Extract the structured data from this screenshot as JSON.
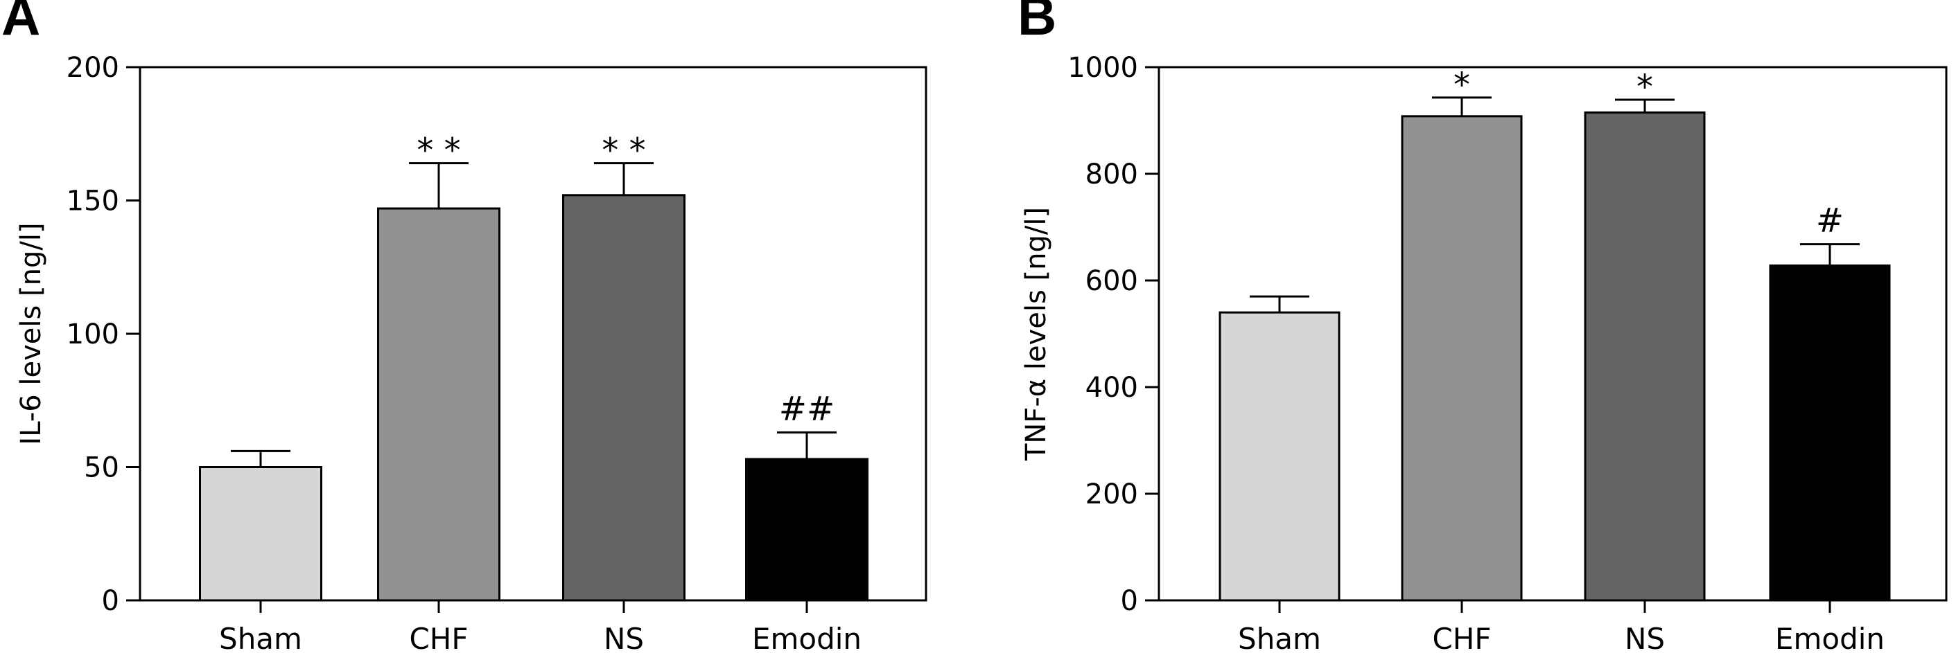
{
  "chart_data": [
    {
      "type": "bar",
      "panel": "A",
      "categories": [
        "Sham",
        "CHF",
        "NS",
        "Emodin"
      ],
      "values": [
        50,
        147,
        152,
        53
      ],
      "errors": [
        6,
        17,
        12,
        10
      ],
      "significance": [
        "",
        "* *",
        "* *",
        "##"
      ],
      "colors": [
        "#d6d6d6",
        "#929292",
        "#646464",
        "#000000"
      ],
      "ylabel": "IL-6 levels [ng/l]",
      "ylim": [
        0,
        200
      ],
      "yticks": [
        0,
        50,
        100,
        150,
        200
      ],
      "grid": false
    },
    {
      "type": "bar",
      "panel": "B",
      "categories": [
        "Sham",
        "CHF",
        "NS",
        "Emodin"
      ],
      "values": [
        540,
        908,
        915,
        628
      ],
      "errors": [
        30,
        35,
        24,
        40
      ],
      "significance": [
        "",
        "*",
        "*",
        "#"
      ],
      "colors": [
        "#d6d6d6",
        "#929292",
        "#646464",
        "#000000"
      ],
      "ylabel": "TNF-α levels [ng/l]",
      "ylim": [
        0,
        1000
      ],
      "yticks": [
        0,
        200,
        400,
        600,
        800,
        1000
      ],
      "grid": false
    }
  ]
}
